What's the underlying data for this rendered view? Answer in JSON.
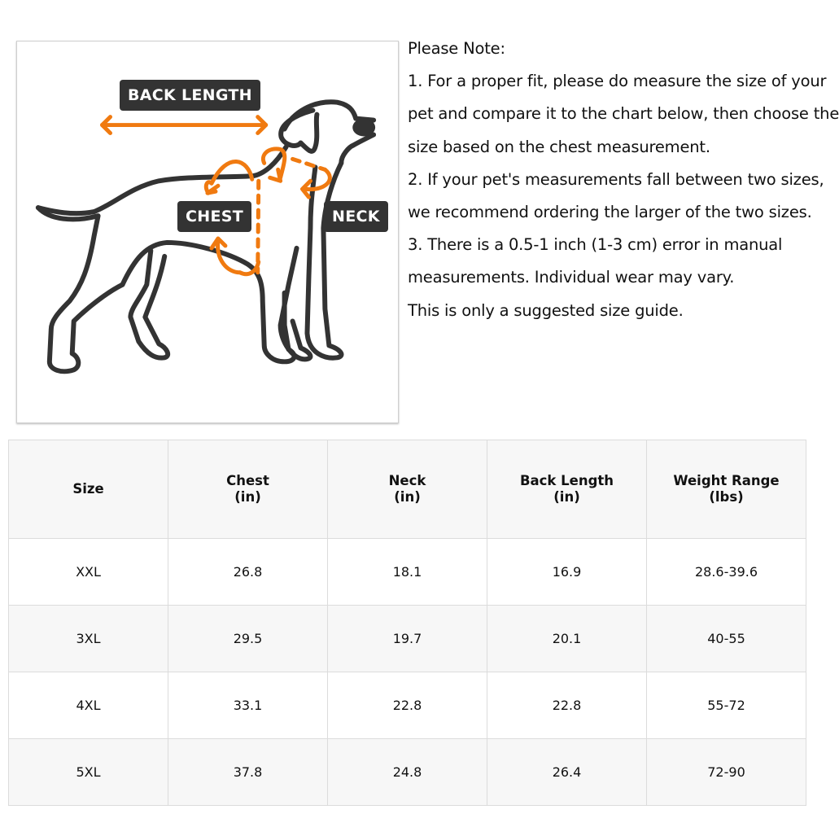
{
  "diagram": {
    "labels": {
      "back_length": "BACK LENGTH",
      "chest": "CHEST",
      "neck": "NECK"
    },
    "colors": {
      "arrow": "#f07a10",
      "outline": "#333333",
      "label_bg": "#333333"
    }
  },
  "notes": [
    "Please Note:",
    "1. For a proper fit, please do measure the size of your",
    "pet and compare it to the chart below, then choose the",
    "size based on the chest measurement.",
    "2. If your pet's measurements fall between two sizes,",
    "we recommend ordering the larger of the two sizes.",
    "3. There is a 0.5-1 inch (1-3 cm) error in manual",
    "measurements. Individual wear may vary.",
    "This is only a suggested size guide."
  ],
  "table": {
    "headers": [
      {
        "line1": "Size",
        "line2": ""
      },
      {
        "line1": "Chest",
        "line2": "(in)"
      },
      {
        "line1": "Neck",
        "line2": "(in)"
      },
      {
        "line1": "Back Length",
        "line2": "(in)"
      },
      {
        "line1": "Weight Range",
        "line2": "(lbs)"
      }
    ],
    "rows": [
      [
        "XXL",
        "26.8",
        "18.1",
        "16.9",
        "28.6-39.6"
      ],
      [
        "3XL",
        "29.5",
        "19.7",
        "20.1",
        "40-55"
      ],
      [
        "4XL",
        "33.1",
        "22.8",
        "22.8",
        "55-72"
      ],
      [
        "5XL",
        "37.8",
        "24.8",
        "26.4",
        "72-90"
      ]
    ]
  }
}
